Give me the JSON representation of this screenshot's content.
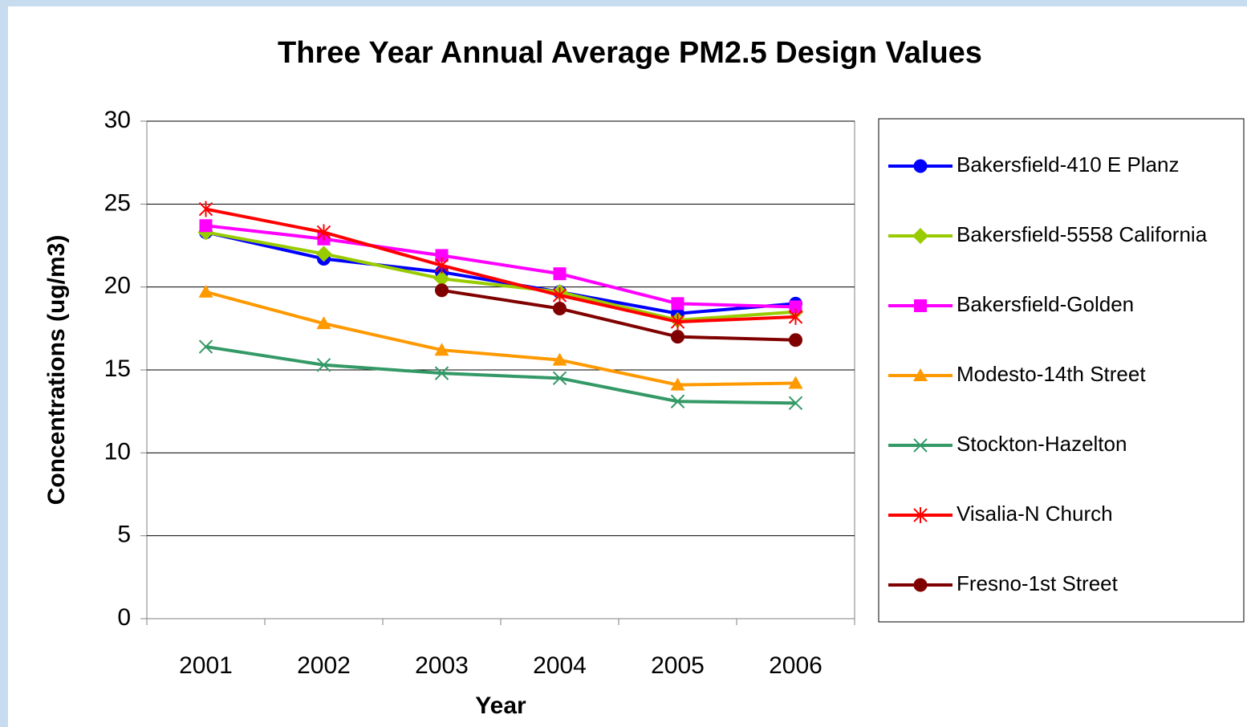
{
  "chart_data": {
    "type": "line",
    "title": "Three Year Annual Average PM2.5 Design Values",
    "x_label": "Year",
    "y_label": "Concentrations (ug/m3)",
    "categories": [
      "2001",
      "2002",
      "2003",
      "2004",
      "2005",
      "2006"
    ],
    "ylim": [
      0,
      30
    ],
    "yticks": [
      0,
      5,
      10,
      15,
      20,
      25,
      30
    ],
    "grid": true,
    "legend": "right",
    "series": [
      {
        "name": "Bakersfield-410 E Planz",
        "color": "#0000ff",
        "marker": "circle",
        "values": [
          23.3,
          21.7,
          20.9,
          19.7,
          18.4,
          19.0
        ]
      },
      {
        "name": "Bakersfield-5558 California",
        "color": "#99cc00",
        "marker": "diamond",
        "values": [
          23.3,
          22.0,
          20.5,
          19.7,
          18.0,
          18.5
        ]
      },
      {
        "name": "Bakersfield-Golden",
        "color": "#ff00ff",
        "marker": "square",
        "values": [
          23.7,
          22.9,
          21.9,
          20.8,
          19.0,
          18.8
        ]
      },
      {
        "name": "Modesto-14th Street",
        "color": "#ff9900",
        "marker": "triangle",
        "values": [
          19.7,
          17.8,
          16.2,
          15.6,
          14.1,
          14.2
        ]
      },
      {
        "name": "Stockton-Hazelton",
        "color": "#339966",
        "marker": "x",
        "values": [
          16.4,
          15.3,
          14.8,
          14.5,
          13.1,
          13.0
        ]
      },
      {
        "name": "Visalia-N Church",
        "color": "#ff0000",
        "marker": "star",
        "values": [
          24.7,
          23.3,
          21.3,
          19.5,
          17.9,
          18.2
        ]
      },
      {
        "name": "Fresno-1st Street",
        "color": "#800000",
        "marker": "circle",
        "values": [
          null,
          null,
          19.8,
          18.7,
          17.0,
          16.8
        ]
      }
    ]
  }
}
